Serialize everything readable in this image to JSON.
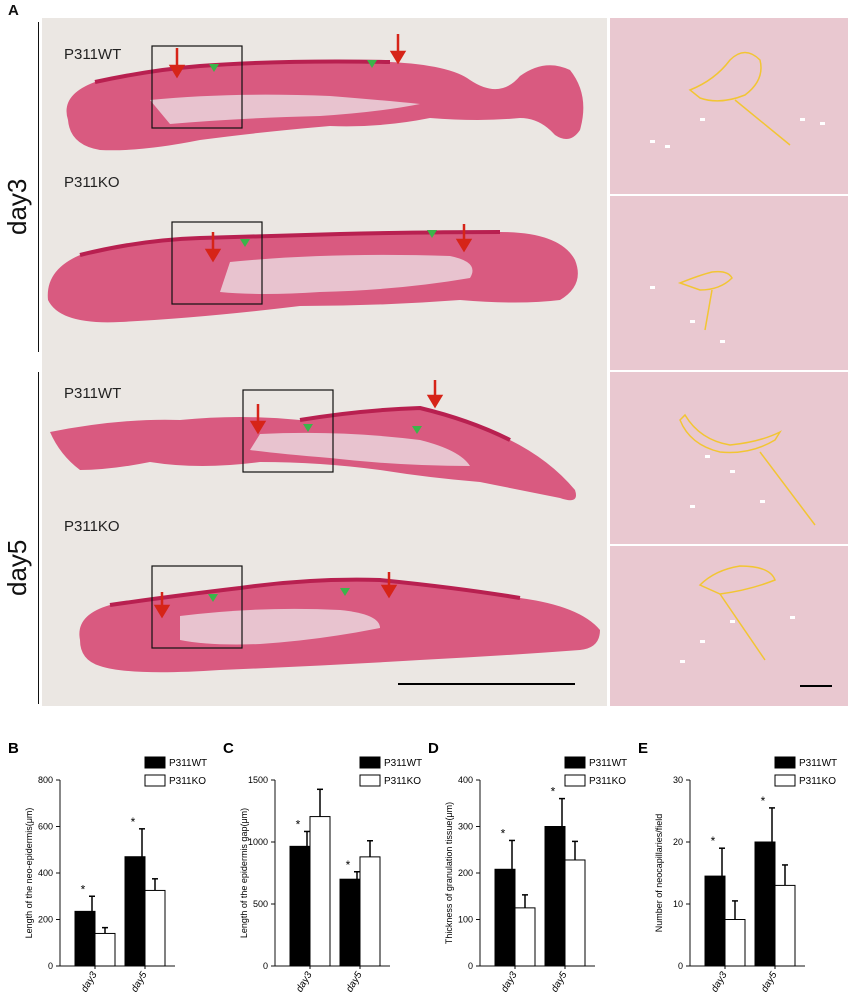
{
  "panel_a": {
    "letter": "A",
    "groups": [
      {
        "day": "day3",
        "sections": [
          "P311WT",
          "P311KO"
        ]
      },
      {
        "day": "day5",
        "sections": [
          "P311WT",
          "P311KO"
        ]
      }
    ]
  },
  "colors": {
    "tissue_pink": "#d94f78",
    "tissue_pale": "#e8b7c6",
    "epidermis": "#c2285a",
    "arrow_red": "#d62418",
    "arrowhead_green": "#3ab54a",
    "outline_yellow": "#f2c533",
    "wt_bar": "#000000",
    "ko_bar": "#ffffff"
  },
  "chart_data": [
    {
      "letter": "B",
      "type": "bar",
      "categories": [
        "day3",
        "day5"
      ],
      "ylabel": "Length of the neo-epidermis(μm)",
      "ylim": [
        0,
        800
      ],
      "yticks": [
        "0",
        "200",
        "400",
        "600",
        "800"
      ],
      "series": [
        {
          "name": "P311WT",
          "values": [
            235,
            470
          ],
          "errors": [
            65,
            120
          ],
          "sig": [
            "*",
            "*"
          ]
        },
        {
          "name": "P311KO",
          "values": [
            140,
            325
          ],
          "errors": [
            25,
            50
          ],
          "sig": [
            "",
            ""
          ]
        }
      ]
    },
    {
      "letter": "C",
      "type": "bar",
      "categories": [
        "day3",
        "day5"
      ],
      "ylabel": "Length of the epidermis gap(μm)",
      "ylim": [
        0,
        1500
      ],
      "yticks": [
        "0",
        "500",
        "1000",
        "1500"
      ],
      "series": [
        {
          "name": "P311WT",
          "values": [
            965,
            700
          ],
          "errors": [
            120,
            60
          ],
          "sig": [
            "*",
            "*"
          ]
        },
        {
          "name": "P311KO",
          "values": [
            1205,
            880
          ],
          "errors": [
            220,
            130
          ],
          "sig": [
            "",
            ""
          ]
        }
      ]
    },
    {
      "letter": "D",
      "type": "bar",
      "categories": [
        "day3",
        "day5"
      ],
      "ylabel": "Thickness of granulation tissue(μm)",
      "ylim": [
        0,
        400
      ],
      "yticks": [
        "0",
        "100",
        "200",
        "300",
        "400"
      ],
      "series": [
        {
          "name": "P311WT",
          "values": [
            208,
            300
          ],
          "errors": [
            62,
            60
          ],
          "sig": [
            "*",
            "*"
          ]
        },
        {
          "name": "P311KO",
          "values": [
            125,
            228
          ],
          "errors": [
            28,
            40
          ],
          "sig": [
            "",
            ""
          ]
        }
      ]
    },
    {
      "letter": "E",
      "type": "bar",
      "categories": [
        "day3",
        "day5"
      ],
      "ylabel": "Number of neocapillaries/field",
      "ylim": [
        0,
        30
      ],
      "yticks": [
        "0",
        "10",
        "20",
        "30"
      ],
      "series": [
        {
          "name": "P311WT",
          "values": [
            14.5,
            20
          ],
          "errors": [
            4.5,
            5.5
          ],
          "sig": [
            "*",
            "*"
          ]
        },
        {
          "name": "P311KO",
          "values": [
            7.5,
            13
          ],
          "errors": [
            3,
            3.3
          ],
          "sig": [
            "",
            ""
          ]
        }
      ]
    }
  ]
}
